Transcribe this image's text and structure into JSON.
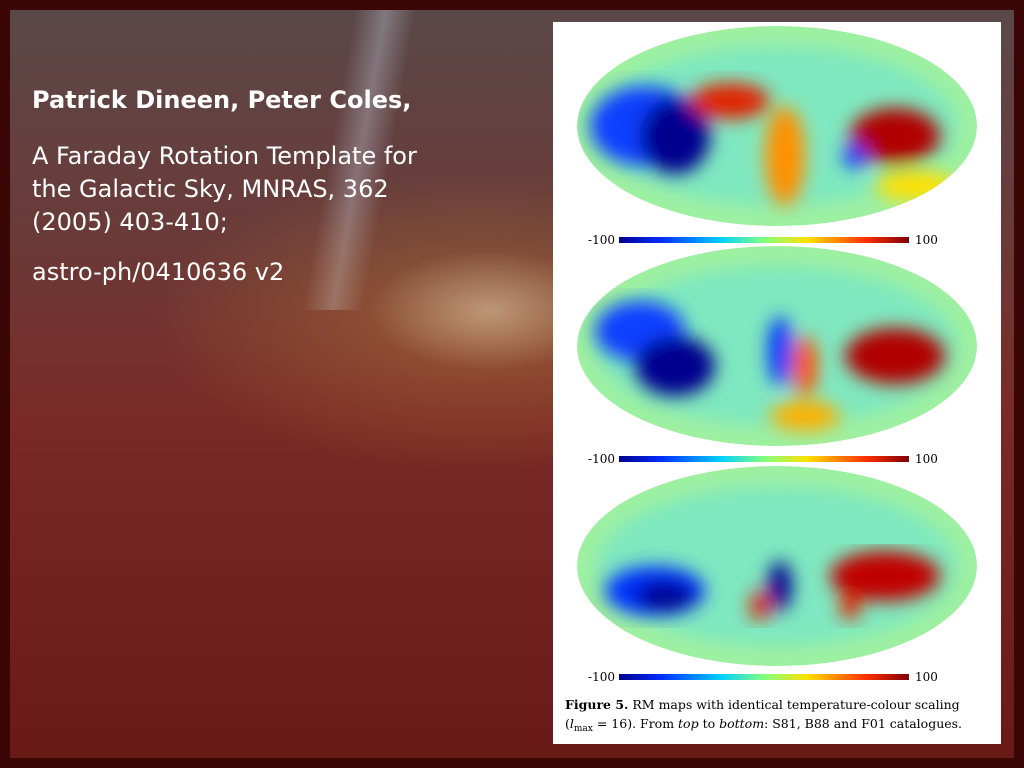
{
  "slide": {
    "authors": "Patrick Dineen, Peter Coles,",
    "citation": [
      "A Faraday Rotation Template for",
      "the Galactic Sky, MNRAS, 362",
      "(2005) 403-410;"
    ],
    "arxiv": "astro-ph/0410636 v2"
  },
  "figure": {
    "maps": [
      {
        "scale_min": "-100",
        "scale_max": "100"
      },
      {
        "scale_min": "-100",
        "scale_max": "100"
      },
      {
        "scale_min": "-100",
        "scale_max": "100"
      }
    ],
    "caption": {
      "label": "Figure 5.",
      "text1": " RM maps with identical temperature-colour scaling",
      "open": "(",
      "l": "l",
      "sub": "max",
      "text2": " = 16). From ",
      "top": "top",
      "text3": " to ",
      "bottom": "bottom",
      "text4": ": S81, B88 and F01 catalogues."
    }
  }
}
